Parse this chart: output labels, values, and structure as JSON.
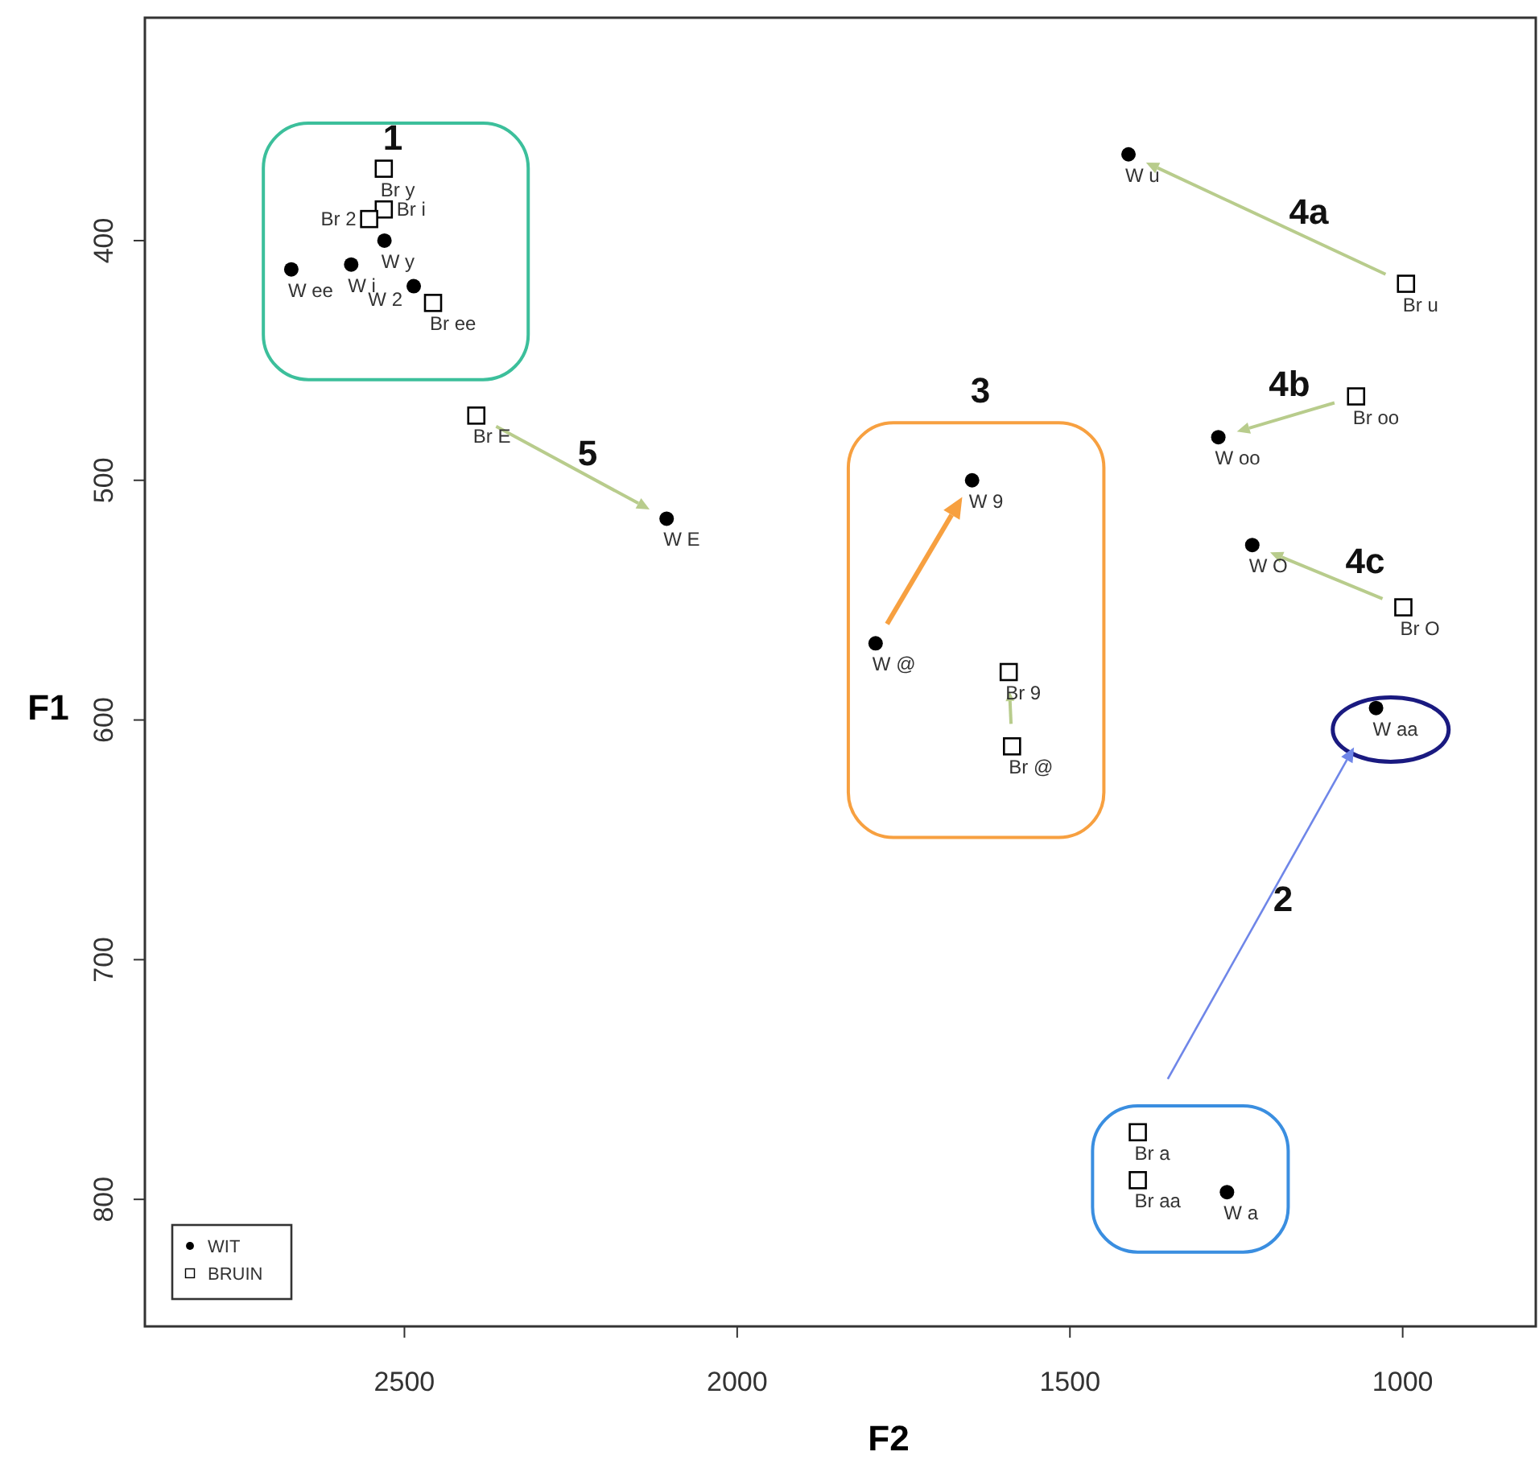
{
  "chart_data": {
    "type": "scatter",
    "xlabel": "F2",
    "ylabel": "F1",
    "xlim": [
      2890,
      800
    ],
    "xticks": [
      2500,
      2000,
      1500,
      1000
    ],
    "ylim": [
      853,
      307
    ],
    "yticks": [
      400,
      500,
      600,
      700,
      800
    ],
    "grid": false,
    "legend": "bottom left",
    "series": [
      {
        "name": "WIT",
        "color": "#000000",
        "marker": "circle",
        "x": [
          2670,
          2580,
          2530,
          2486,
          1412,
          1277,
          1226,
          1040,
          1264,
          2106,
          1647,
          1792
        ],
        "values": [
          412,
          410,
          400,
          419,
          364,
          482,
          527,
          595,
          797,
          516,
          500,
          568
        ],
        "value_labels": [
          "W ee",
          "W i",
          "W y",
          "W 2",
          "W u",
          "W oo",
          "W O",
          "W aa",
          "W a",
          "W E",
          "W 9",
          "W @"
        ]
      },
      {
        "name": "BRUIN",
        "color": "#000000",
        "marker": "square",
        "x": [
          2531,
          2531,
          2553,
          2457,
          995,
          1070,
          999,
          2392,
          1592,
          1587,
          1398,
          1398
        ],
        "values": [
          370,
          387,
          391,
          426,
          418,
          465,
          553,
          473,
          580,
          611,
          772,
          792
        ],
        "value_labels": [
          "Br y",
          "Br i",
          "Br 2",
          "Br ee",
          "Br u",
          "Br oo",
          "Br O",
          "Br E",
          "Br 9",
          "Br @",
          "Br a",
          "Br aa"
        ]
      }
    ],
    "annotations": [
      "1",
      "4a",
      "4b",
      "3",
      "5",
      "4c",
      "2"
    ]
  }
}
